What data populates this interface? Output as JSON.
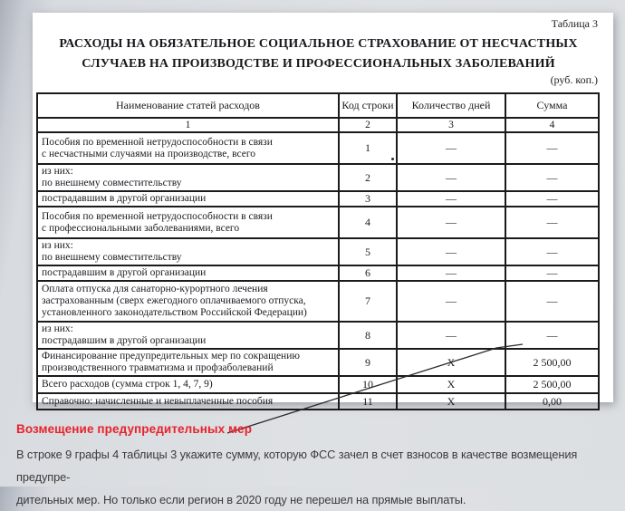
{
  "page": {
    "table_label": "Таблица 3",
    "title_lines": [
      "РАСХОДЫ НА ОБЯЗАТЕЛЬНОЕ СОЦИАЛЬНОЕ СТРАХОВАНИЕ ОТ НЕСЧАСТНЫХ",
      "СЛУЧАЕВ НА ПРОИЗВОДСТВЕ И ПРОФЕССИОНАЛЬНЫХ ЗАБОЛЕВАНИЙ"
    ],
    "units_note": "(руб. коп.)"
  },
  "table": {
    "headers": [
      "Наименование статей расходов",
      "Код строки",
      "Количество дней",
      "Сумма"
    ],
    "column_numbers": [
      "1",
      "2",
      "3",
      "4"
    ],
    "rows": [
      {
        "name": "Пособия по временной нетрудоспособности в связи\nс несчастными случаями на производстве, всего",
        "code": "1",
        "days": "—",
        "sum": "—"
      },
      {
        "name": "из них:\nпо внешнему совместительству",
        "code": "2",
        "days": "—",
        "sum": "—"
      },
      {
        "name": "пострадавшим в другой организации",
        "code": "3",
        "days": "—",
        "sum": "—"
      },
      {
        "name": "Пособия по временной нетрудоспособности в связи\nс профессиональными заболеваниями, всего",
        "code": "4",
        "days": "—",
        "sum": "—"
      },
      {
        "name": "из них:\nпо внешнему совместительству",
        "code": "5",
        "days": "—",
        "sum": "—"
      },
      {
        "name": "пострадавшим в другой организации",
        "code": "6",
        "days": "—",
        "sum": "—"
      },
      {
        "name": "Оплата отпуска для санаторно-курортного лечения\nзастрахованным (сверх ежегодного оплачиваемого отпуска,\nустановленного законодательством Российской Федерации)",
        "code": "7",
        "days": "—",
        "sum": "—"
      },
      {
        "name": "из них:\nпострадавшим в другой организации",
        "code": "8",
        "days": "—",
        "sum": "—"
      },
      {
        "name": "Финансирование предупредительных мер по сокращению\nпроизводственного травматизма и профзаболеваний",
        "code": "9",
        "days": "Х",
        "sum": "2 500,00"
      },
      {
        "name": "Всего расходов (сумма строк 1, 4, 7, 9)",
        "code": "10",
        "days": "Х",
        "sum": "2 500,00"
      },
      {
        "name": "Справочно: начисленные и невыплаченные пособия",
        "code": "11",
        "days": "Х",
        "sum": "0,00"
      }
    ]
  },
  "annotation": {
    "heading": "Возмещение предупредительных мер",
    "body_lines": [
      "В строке 9 графы 4 таблицы 3 укажите сумму, которую ФСС зачел в счет взносов в качестве возмещения предупре-",
      "дительных мер. Но только если регион в 2020 году не перешел на прямые выплаты."
    ],
    "accent_color": "#e8222b"
  }
}
